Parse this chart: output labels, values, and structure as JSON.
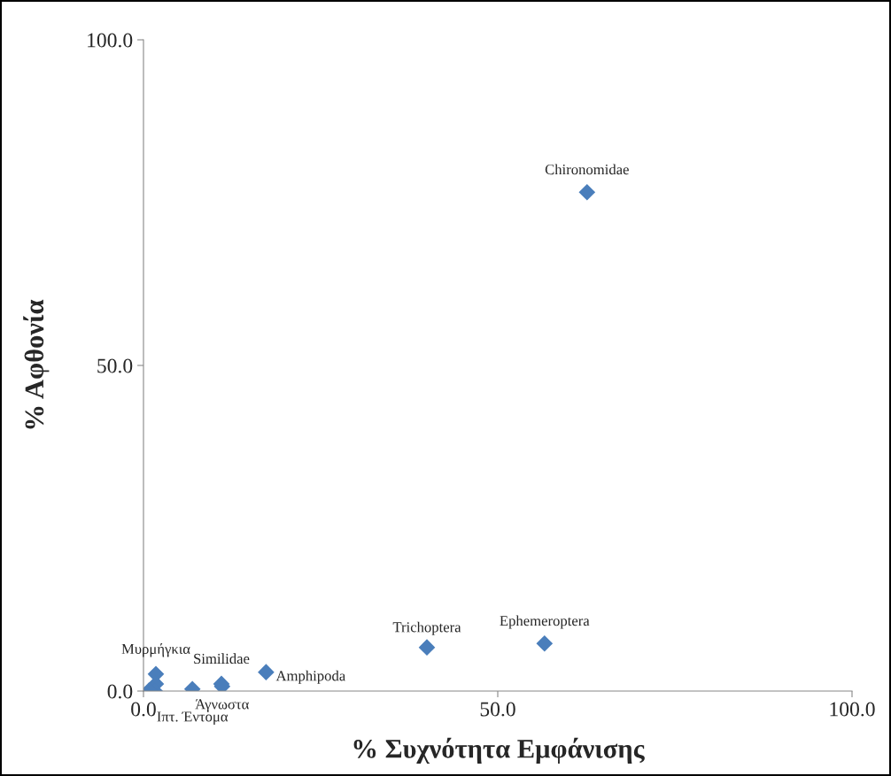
{
  "chart_data": {
    "type": "scatter",
    "xlabel": "% Συχνότητα Εμφάνισης",
    "ylabel": "% Αφθονία",
    "x": [
      62.6,
      56.6,
      40.0,
      17.3,
      1.75,
      1.75,
      1.6,
      0.8,
      6.9,
      11.0,
      11.1
    ],
    "series": [
      {
        "color": "#4a7ebb",
        "values": [
          76.6,
          7.3,
          6.7,
          2.9,
          2.6,
          1.1,
          0.0,
          0.1,
          0.3,
          1.1,
          0.7
        ]
      }
    ],
    "xlim": [
      0,
      100
    ],
    "ylim": [
      0,
      100
    ],
    "xticks": [
      {
        "value": 0,
        "label": "0.0"
      },
      {
        "value": 50,
        "label": "50.0"
      },
      {
        "value": 100,
        "label": "100.0"
      }
    ],
    "yticks": [
      {
        "value": 0,
        "label": "0.0"
      },
      {
        "value": 50,
        "label": "50.0"
      },
      {
        "value": 100,
        "label": "100.0"
      }
    ],
    "marker": "diamond",
    "grid": false,
    "legend": false,
    "annotations": [
      {
        "text": "Chironomidae",
        "x": 62.6,
        "y": 76.6
      },
      {
        "text": "Ephemeroptera",
        "x": 56.6,
        "y": 7.3
      },
      {
        "text": "Trichoptera",
        "x": 40.0,
        "y": 6.7
      },
      {
        "text": "Amphipoda",
        "x": 17.3,
        "y": 2.9
      },
      {
        "text": "Μυρμήγκια",
        "x": 1.75,
        "y": 2.6
      },
      {
        "text": "Similidae",
        "x": 11.0,
        "y": 1.1
      },
      {
        "text": "Άγνωστα",
        "x": 11.1,
        "y": 0.7
      },
      {
        "text": "Ιπτ. Έντομα",
        "x": 6.9,
        "y": 0.3
      }
    ]
  }
}
